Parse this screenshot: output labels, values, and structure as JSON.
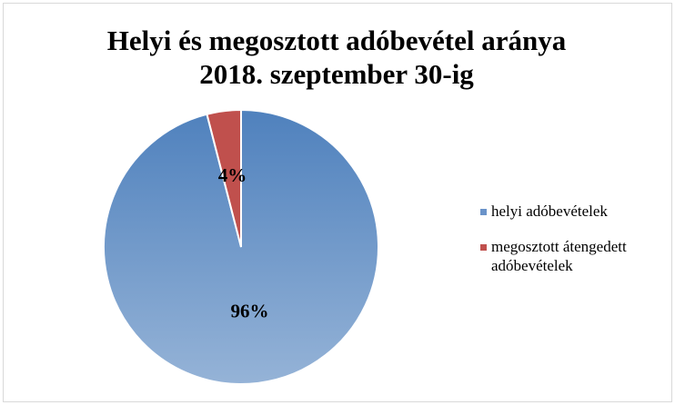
{
  "chart_data": {
    "type": "pie",
    "title": [
      "Helyi és megosztott adóbevétel aránya",
      "2018. szeptember 30-ig"
    ],
    "categories": [
      "helyi adóbevételek",
      "megosztott átengedett adóbevételek"
    ],
    "values": [
      96,
      4
    ],
    "value_labels": [
      "96%",
      "4%"
    ],
    "colors": [
      "#6a93c9",
      "#c0504d"
    ],
    "legend": "right"
  }
}
